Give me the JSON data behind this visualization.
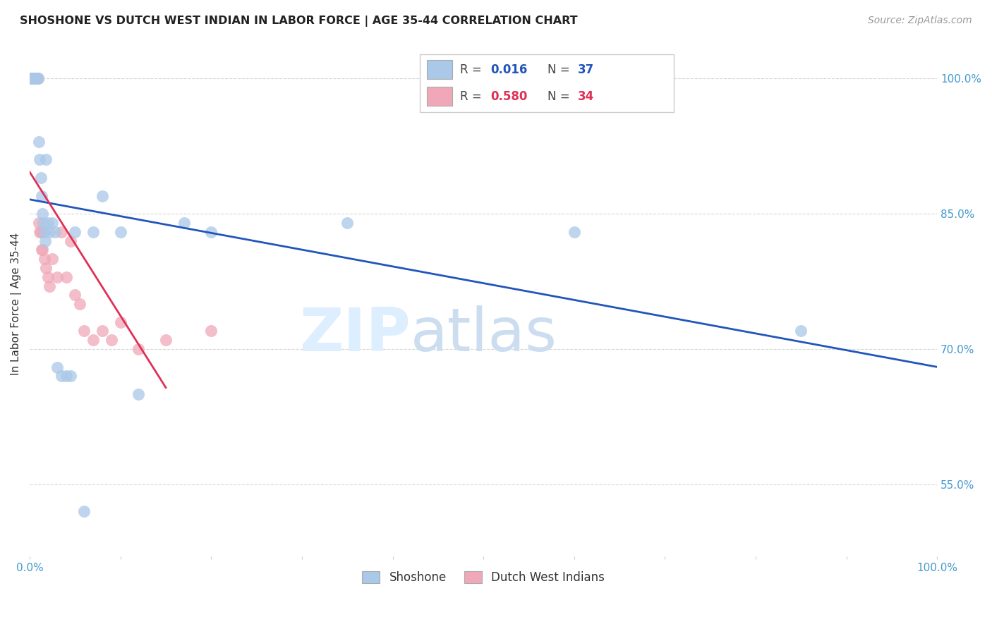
{
  "title": "SHOSHONE VS DUTCH WEST INDIAN IN LABOR FORCE | AGE 35-44 CORRELATION CHART",
  "source": "Source: ZipAtlas.com",
  "ylabel": "In Labor Force | Age 35-44",
  "xlim": [
    0.0,
    1.0
  ],
  "ylim": [
    0.47,
    1.03
  ],
  "yticks": [
    0.55,
    0.7,
    0.85,
    1.0
  ],
  "ytick_labels": [
    "55.0%",
    "70.0%",
    "85.0%",
    "100.0%"
  ],
  "shoshone_R": "0.016",
  "shoshone_N": "37",
  "dutch_R": "0.580",
  "dutch_N": "34",
  "shoshone_color": "#aac8e8",
  "dutch_color": "#f0a8b8",
  "shoshone_line_color": "#2255bb",
  "dutch_line_color": "#e03055",
  "shoshone_x": [
    0.001,
    0.002,
    0.003,
    0.004,
    0.005,
    0.006,
    0.007,
    0.008,
    0.009,
    0.01,
    0.011,
    0.012,
    0.013,
    0.014,
    0.015,
    0.016,
    0.017,
    0.018,
    0.02,
    0.022,
    0.025,
    0.028,
    0.03,
    0.035,
    0.04,
    0.045,
    0.05,
    0.06,
    0.07,
    0.08,
    0.1,
    0.12,
    0.17,
    0.2,
    0.35,
    0.6,
    0.85
  ],
  "shoshone_y": [
    1.0,
    1.0,
    1.0,
    1.0,
    1.0,
    1.0,
    1.0,
    1.0,
    1.0,
    0.93,
    0.91,
    0.89,
    0.87,
    0.85,
    0.84,
    0.83,
    0.82,
    0.91,
    0.84,
    0.83,
    0.84,
    0.83,
    0.68,
    0.67,
    0.67,
    0.67,
    0.83,
    0.52,
    0.83,
    0.87,
    0.83,
    0.65,
    0.84,
    0.83,
    0.84,
    0.83,
    0.72
  ],
  "dutch_x": [
    0.001,
    0.002,
    0.003,
    0.004,
    0.005,
    0.006,
    0.007,
    0.008,
    0.009,
    0.01,
    0.011,
    0.012,
    0.013,
    0.014,
    0.015,
    0.016,
    0.018,
    0.02,
    0.022,
    0.025,
    0.03,
    0.035,
    0.04,
    0.045,
    0.05,
    0.055,
    0.06,
    0.07,
    0.08,
    0.09,
    0.1,
    0.12,
    0.15,
    0.2
  ],
  "dutch_y": [
    1.0,
    1.0,
    1.0,
    1.0,
    1.0,
    1.0,
    1.0,
    1.0,
    1.0,
    0.84,
    0.83,
    0.83,
    0.81,
    0.81,
    0.83,
    0.8,
    0.79,
    0.78,
    0.77,
    0.8,
    0.78,
    0.83,
    0.78,
    0.82,
    0.76,
    0.75,
    0.72,
    0.71,
    0.72,
    0.71,
    0.73,
    0.7,
    0.71,
    0.72
  ]
}
